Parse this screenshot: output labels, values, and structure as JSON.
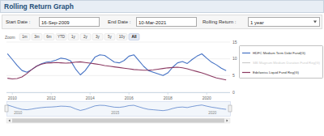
{
  "header": {
    "title": "Rolling Return Graph"
  },
  "form": {
    "fields": [
      {
        "label": "Start Date :",
        "value": "16-Sep-2009"
      },
      {
        "label": "End Date :",
        "value": "10-Mar-2021"
      },
      {
        "label": "Rolling Return :",
        "value": "1 year"
      }
    ]
  },
  "zoom": {
    "label": "Zoom",
    "buttons": [
      "1m",
      "3m",
      "6m",
      "YTD",
      "1y",
      "2y",
      "3y",
      "5y",
      "10y",
      "All"
    ],
    "selected": "All"
  },
  "chart_data": {
    "type": "line",
    "x": [
      2009.75,
      2010,
      2010.25,
      2010.5,
      2010.75,
      2011,
      2011.25,
      2011.5,
      2011.75,
      2012,
      2012.25,
      2012.5,
      2012.75,
      2013,
      2013.25,
      2013.5,
      2013.75,
      2014,
      2014.25,
      2014.5,
      2014.75,
      2015,
      2015.25,
      2015.5,
      2015.75,
      2016,
      2016.25,
      2016.5,
      2016.75,
      2017,
      2017.25,
      2017.5,
      2017.75,
      2018,
      2018.25,
      2018.5,
      2018.75,
      2019,
      2019.25,
      2019.5,
      2019.75,
      2020,
      2020.25,
      2020.5,
      2020.75,
      2021
    ],
    "xlim": [
      2009.7,
      2021.2
    ],
    "xticks": [
      2010,
      2012,
      2014,
      2016,
      2018,
      2020
    ],
    "ylim": [
      0,
      15
    ],
    "yticks": [
      0,
      5,
      10,
      15
    ],
    "grid": true,
    "legend": "right",
    "series": [
      {
        "name": "HDFC Medium Term Debt Fund(G)",
        "color": "#4572c4",
        "values": [
          11.5,
          9.8,
          8.0,
          6.5,
          6.0,
          6.8,
          7.8,
          8.5,
          9.0,
          9.2,
          9.6,
          10.2,
          10.0,
          9.4,
          7.0,
          5.2,
          6.5,
          8.5,
          10.5,
          11.2,
          11.0,
          10.0,
          9.0,
          8.8,
          9.5,
          10.8,
          11.2,
          9.5,
          7.8,
          6.5,
          6.0,
          5.5,
          5.0,
          5.8,
          7.5,
          8.8,
          9.2,
          8.6,
          9.8,
          10.8,
          11.5,
          10.2,
          9.0,
          8.2,
          7.2,
          6.5
        ]
      },
      {
        "name": "SBI Magnum Medium Duration Fund Reg(G)",
        "color": "#cccccc",
        "values": [
          null,
          null,
          null,
          null,
          null,
          null,
          null,
          null,
          null,
          null,
          null,
          null,
          null,
          null,
          null,
          null,
          null,
          null,
          null,
          null,
          null,
          null,
          null,
          null,
          null,
          null,
          null,
          null,
          null,
          null,
          null,
          null,
          null,
          null,
          null,
          null,
          null,
          null,
          null,
          null,
          null,
          null,
          null,
          null,
          null,
          null
        ]
      },
      {
        "name": "Edelweiss Liquid Fund Reg(G)",
        "color": "#8b3a62",
        "values": [
          4.2,
          4.0,
          4.1,
          4.6,
          5.6,
          6.8,
          7.8,
          8.4,
          8.7,
          8.8,
          8.9,
          8.8,
          8.7,
          8.8,
          9.0,
          9.1,
          8.9,
          8.7,
          8.5,
          8.3,
          8.0,
          7.8,
          7.6,
          7.4,
          7.2,
          7.0,
          6.8,
          6.7,
          6.6,
          6.6,
          6.7,
          6.9,
          7.1,
          7.3,
          7.4,
          7.5,
          7.3,
          7.0,
          6.6,
          6.2,
          5.8,
          5.3,
          4.8,
          4.3,
          4.0,
          3.7
        ]
      }
    ]
  },
  "navigator": {
    "xticks": [
      2010,
      2015,
      2020
    ]
  }
}
